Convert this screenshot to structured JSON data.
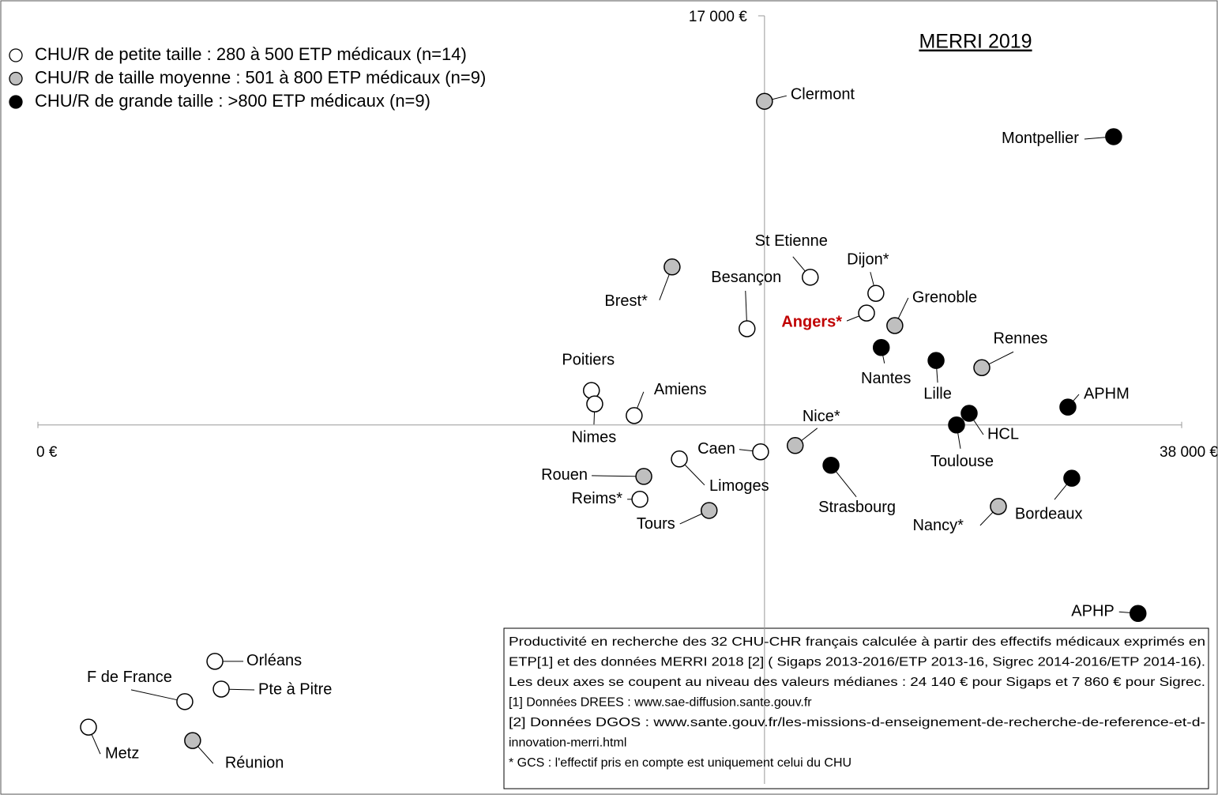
{
  "chart_data": {
    "type": "scatter",
    "title": "MERRI 2019",
    "xlim": [
      0,
      38000
    ],
    "ylim": [
      0,
      17000
    ],
    "xticks": [
      {
        "value": 0,
        "label": "0 €"
      },
      {
        "value": 38000,
        "label": "38 000 €"
      }
    ],
    "yticks": [
      {
        "value": 17000,
        "label": "17 000 €"
      }
    ],
    "axis_cross": {
      "x": 24140,
      "y": 7860
    },
    "highlight": {
      "series": 0,
      "index": 2,
      "color": "#c00000"
    },
    "series": [
      {
        "name": "CHU/R de petite taille : 280 à 500 ETP médicaux (n=14)",
        "color": "#ffffff",
        "labels": [
          "St Etienne",
          "Dijon*",
          "Angers*",
          "Besançon",
          "Poitiers",
          "Nimes",
          "Amiens",
          "Caen",
          "Limoges",
          "Reims*",
          "Orléans",
          "Pte à Pitre",
          "F de France",
          "Metz"
        ],
        "x": [
          25660,
          27840,
          27530,
          23560,
          18390,
          18500,
          19810,
          24010,
          21310,
          20000,
          5880,
          6090,
          4880,
          1680
        ],
        "values": [
          11160,
          10800,
          10360,
          10010,
          8630,
          8330,
          8070,
          7260,
          7100,
          6200,
          2580,
          1960,
          1680,
          1110
        ]
      },
      {
        "name": "CHU/R de taille moyenne  : 501 à 800 ETP médicaux (n=9)",
        "color": "#bfbfbf",
        "labels": [
          "Clermont",
          "Brest*",
          "Grenoble",
          "Rennes",
          "Nice*",
          "Rouen",
          "Tours",
          "Nancy*",
          "Réunion"
        ],
        "x": [
          24140,
          21070,
          28470,
          31360,
          25160,
          20130,
          22300,
          31910,
          5140
        ],
        "values": [
          15090,
          11390,
          10080,
          9140,
          7400,
          6710,
          5950,
          6040,
          810
        ]
      },
      {
        "name": "CHU/R de grande taille : >800 ETP médicaux (n=9)",
        "color": "#000000",
        "labels": [
          "Montpellier",
          "Nantes",
          "Lille",
          "APHM",
          "HCL",
          "Toulouse",
          "Strasbourg",
          "Bordeaux",
          "APHP"
        ],
        "x": [
          35740,
          28020,
          29840,
          34220,
          30940,
          30520,
          26350,
          34350,
          36550
        ],
        "values": [
          14300,
          9590,
          9300,
          8260,
          8120,
          7860,
          6960,
          6670,
          3650
        ]
      }
    ],
    "note": [
      "Productivité en recherche des 32 CHU-CHR français calculée à partir des effectifs médicaux exprimés en",
      "ETP[1] et des données MERRI 2018 [2] ( Sigaps 2013-2016/ETP 2013-16, Sigrec 2014-2016/ETP 2014-16).",
      "Les deux axes se coupent au niveau des valeurs médianes : 24 140 € pour Sigaps et 7 860 € pour Sigrec.",
      "[1] Données DREES : www.sae-diffusion.sante.gouv.fr",
      "[2] Données DGOS : www.sante.gouv.fr/les-missions-d-enseignement-de-recherche-de-reference-et-d-",
      "innovation-merri.html",
      "* GCS : l'effectif pris en compte est uniquement celui du CHU"
    ]
  }
}
